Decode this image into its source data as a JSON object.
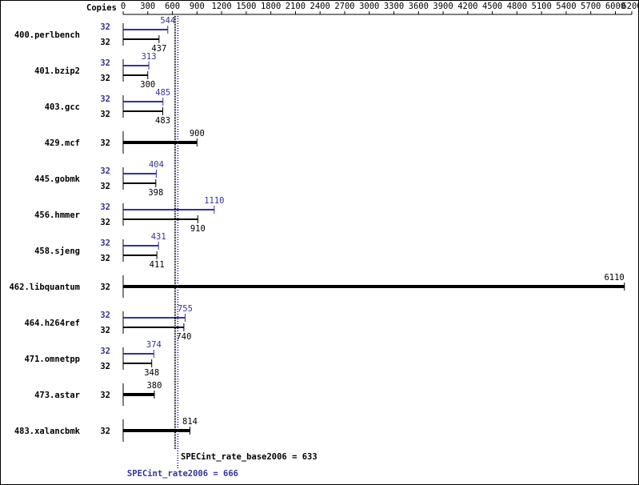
{
  "chart_data": {
    "type": "bar",
    "orientation": "horizontal",
    "copies_label": "Copies",
    "categories": [
      "400.perlbench",
      "401.bzip2",
      "403.gcc",
      "429.mcf",
      "445.gobmk",
      "456.hmmer",
      "458.sjeng",
      "462.libquantum",
      "464.h264ref",
      "471.omnetpp",
      "473.astar",
      "483.xalancbmk"
    ],
    "series": [
      {
        "color": "#333399",
        "values": [
          544,
          313,
          485,
          null,
          404,
          1110,
          431,
          null,
          755,
          374,
          null,
          null
        ],
        "copies": [
          32,
          32,
          32,
          null,
          32,
          32,
          32,
          null,
          32,
          32,
          null,
          null
        ]
      },
      {
        "color": "#000000",
        "values": [
          437,
          300,
          483,
          900,
          398,
          910,
          411,
          6110,
          740,
          348,
          380,
          814
        ],
        "copies": [
          32,
          32,
          32,
          32,
          32,
          32,
          32,
          32,
          32,
          32,
          32,
          32
        ]
      }
    ],
    "xlim": [
      0,
      6200
    ],
    "xticks": [
      0,
      300,
      600,
      900,
      1200,
      1500,
      1800,
      2100,
      2400,
      2700,
      3000,
      3300,
      3600,
      3900,
      4200,
      4500,
      4800,
      5100,
      5400,
      5700,
      6000,
      6200
    ],
    "base_metric": {
      "label": "SPECint_rate_base2006 = 633",
      "value": 633,
      "color": "#000000"
    },
    "peak_metric": {
      "label": "SPECint_rate2006 = 666",
      "value": 666,
      "color": "#333399"
    }
  }
}
